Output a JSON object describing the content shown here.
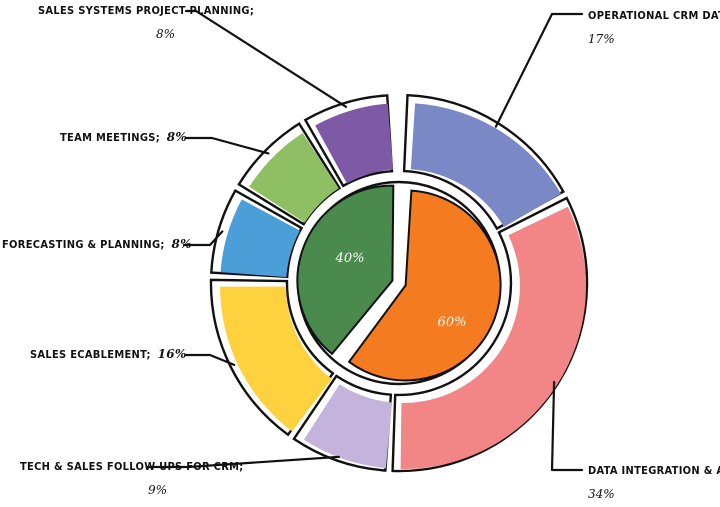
{
  "chart_data": {
    "type": "pie",
    "inner": {
      "slices": [
        {
          "label": "",
          "value": 60,
          "display": "60%",
          "color": "#F47B20"
        },
        {
          "label": "",
          "value": 40,
          "display": "40%",
          "color": "#4A8A4C"
        }
      ]
    },
    "outer": {
      "slices": [
        {
          "label": "OPERATIONAL CRM DATA MANAGEMENT;",
          "value": 17,
          "display": "17%",
          "color": "#7B88C6"
        },
        {
          "label": "DATA INTEGRATION & ANALYSIS;",
          "value": 34,
          "display": "34%",
          "color": "#F28585"
        },
        {
          "label": "TECH & SALES FOLLOW UPS FOR CRM;",
          "value": 9,
          "display": "9%",
          "color": "#C4B3DC"
        },
        {
          "label": "SALES ECABLEMENT;",
          "value": 16,
          "display": "16%",
          "color": "#FDD23E"
        },
        {
          "label": "FORECASTING & PLANNING;",
          "value": 8,
          "display": "8%",
          "color": "#4C9ED9"
        },
        {
          "label": "TEAM MEETINGS;",
          "value": 8,
          "display": "8%",
          "color": "#8FBF63"
        },
        {
          "label": "SALES SYSTEMS PROJECT PLANNING;",
          "value": 8,
          "display": "8%",
          "color": "#7E5AA6"
        }
      ]
    }
  }
}
